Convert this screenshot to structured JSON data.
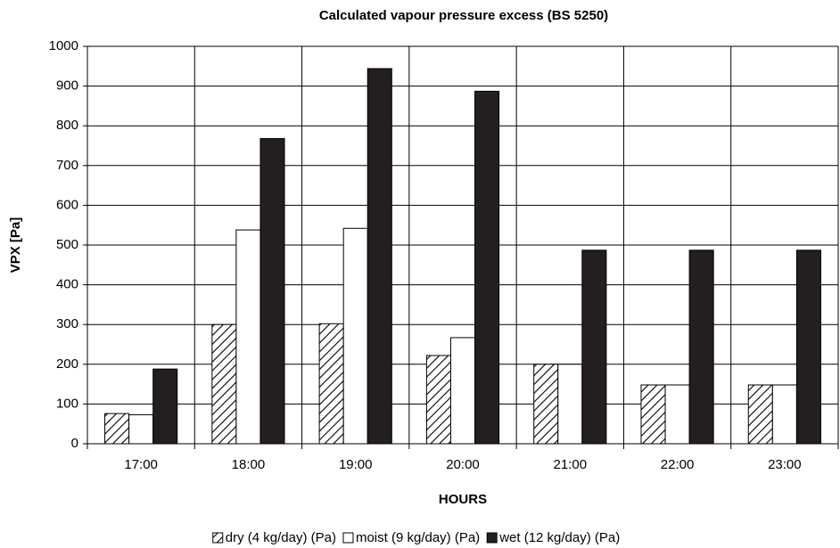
{
  "chart_data": {
    "type": "bar",
    "title": "Calculated vapour pressure excess (BS 5250)",
    "x_label": "HOURS",
    "y_label": "VPX [Pa]",
    "categories": [
      "17:00",
      "18:00",
      "19:00",
      "20:00",
      "21:00",
      "22:00",
      "23:00"
    ],
    "series": [
      {
        "name": "dry (4 kg/day) (Pa)",
        "color": "#ffffff",
        "pattern": "hatch",
        "values": [
          76,
          300,
          302,
          222,
          200,
          148,
          148
        ]
      },
      {
        "name": "moist (9 kg/day) (Pa)",
        "color": "#ffffff",
        "values": [
          73,
          538,
          542,
          267,
          200,
          148,
          148
        ]
      },
      {
        "name": "wet (12 kg/day) (Pa)",
        "color": "#231f20",
        "values": [
          188,
          768,
          944,
          887,
          487,
          487,
          487
        ]
      }
    ],
    "ylim": [
      0,
      1000
    ],
    "yticks": [
      0,
      100,
      200,
      300,
      400,
      500,
      600,
      700,
      800,
      900,
      1000
    ],
    "grid": true,
    "legend": "bottom"
  }
}
